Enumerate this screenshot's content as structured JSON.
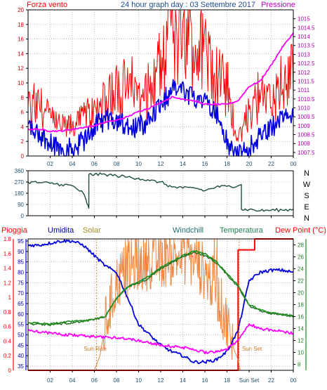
{
  "header": {
    "left": "Forza vento",
    "center": "24 hour graph day : 03 Settembre 2017",
    "right": "Pressione"
  },
  "bottom_header": {
    "rain": "Pioggia",
    "humidity": "Umidita",
    "solar": "Solar",
    "windchill": "Windchill",
    "temperature": "Temperatura",
    "dewpoint": "Dew Point (°C)"
  },
  "annotations": {
    "sunrise": "Sun Rise",
    "sunset": "Sun Set"
  },
  "colors": {
    "wind_gust": "#ff0000",
    "wind_avg": "#0000dd",
    "pressure": "#ff00ff",
    "direction": "#1e4d3a",
    "rain": "#ff0000",
    "humidity": "#0000dd",
    "solar": "#ee8844",
    "windchill": "#1e6e1e",
    "temperature": "#1e8c1e",
    "dewpoint": "#ff00ff",
    "grid": "#999999",
    "axis": "#000000",
    "label_dark": "#1e4d6e",
    "label_temp": "#1e7e4e",
    "label_solar": "#aa8822"
  },
  "chart_data": [
    {
      "type": "line",
      "title": "24 hour graph day : 03 Settembre 2017",
      "x_ticks": [
        "02",
        "04",
        "06",
        "08",
        "10",
        "12",
        "14",
        "16",
        "18",
        "20",
        "22",
        "00"
      ],
      "xlim": [
        0,
        24
      ],
      "left_axis": {
        "label": "Forza vento",
        "ticks": [
          "0",
          "2",
          "4",
          "6",
          "8",
          "10",
          "12",
          "14",
          "16",
          "18",
          "20"
        ],
        "ylim": [
          0,
          20
        ]
      },
      "right_axis": {
        "label": "Pressione",
        "ticks": [
          "1007.5",
          "1008",
          "1008.5",
          "1009",
          "1009.5",
          "1010",
          "1010.5",
          "1011",
          "1011.5",
          "1012",
          "1012.5",
          "1013",
          "1013.5",
          "1014",
          "1014.5",
          "1015"
        ],
        "ylim": [
          1007.3,
          1015.5
        ]
      },
      "series": [
        {
          "name": "Forza vento",
          "axis": "left",
          "x": [
            0,
            1,
            2,
            3,
            4,
            5,
            6,
            7,
            8,
            9,
            10,
            11,
            12,
            13,
            14,
            15,
            16,
            17,
            18,
            19,
            20,
            21,
            22,
            23,
            24
          ],
          "values": [
            6,
            7,
            5,
            4,
            4,
            5,
            6,
            7,
            9,
            9,
            8,
            9,
            12,
            15,
            16,
            15,
            14,
            11,
            9,
            2,
            6,
            8,
            7,
            9,
            10
          ]
        },
        {
          "name": "Vento medio",
          "axis": "left",
          "x": [
            0,
            1,
            2,
            3,
            4,
            5,
            6,
            7,
            8,
            9,
            10,
            11,
            12,
            13,
            14,
            15,
            16,
            17,
            18,
            19,
            20,
            21,
            22,
            23,
            24
          ],
          "values": [
            4,
            3,
            2,
            1,
            1,
            2,
            4,
            5,
            5,
            4,
            4,
            5,
            7,
            9,
            9,
            8,
            8,
            6,
            2,
            0,
            1,
            3,
            4,
            5,
            6
          ]
        },
        {
          "name": "Pressione",
          "axis": "right",
          "x": [
            0,
            1,
            2,
            3,
            4,
            5,
            6,
            7,
            8,
            9,
            10,
            11,
            12,
            13,
            14,
            15,
            16,
            17,
            18,
            19,
            20,
            21,
            22,
            23,
            24
          ],
          "values": [
            1008.8,
            1008.8,
            1008.7,
            1008.7,
            1008.8,
            1008.9,
            1009.0,
            1009.2,
            1009.3,
            1009.5,
            1009.8,
            1010.0,
            1010.3,
            1010.6,
            1010.5,
            1010.4,
            1010.2,
            1010.2,
            1010.2,
            1010.4,
            1011.2,
            1011.5,
            1012.4,
            1013.4,
            1014.2
          ]
        }
      ]
    },
    {
      "type": "line",
      "x_ticks": [
        "02",
        "04",
        "06",
        "08",
        "10",
        "12",
        "14",
        "16",
        "18",
        "20",
        "22",
        "00"
      ],
      "xlim": [
        0,
        24
      ],
      "left_axis": {
        "ticks": [
          "0",
          "90",
          "180",
          "270",
          "360"
        ],
        "ylim": [
          0,
          360
        ]
      },
      "right_labels": [
        "N",
        "W",
        "S",
        "E",
        "N"
      ],
      "series": [
        {
          "name": "Direzione vento",
          "x": [
            0,
            1,
            2,
            3,
            4,
            5,
            5.5,
            5.5,
            6,
            7,
            8,
            9,
            10,
            11,
            12,
            13,
            14,
            15,
            16,
            17,
            18,
            19,
            19.3,
            19.3,
            20,
            21,
            22,
            23,
            24
          ],
          "values": [
            270,
            265,
            260,
            250,
            240,
            180,
            60,
            330,
            330,
            330,
            320,
            310,
            300,
            280,
            270,
            230,
            220,
            225,
            200,
            230,
            235,
            240,
            250,
            50,
            50,
            40,
            45,
            45,
            50
          ]
        }
      ]
    },
    {
      "type": "line",
      "x_ticks": [
        "02",
        "04",
        "06",
        "08",
        "10",
        "12",
        "14",
        "16",
        "18",
        "Sun Set",
        "22",
        "00"
      ],
      "xlim": [
        0,
        24
      ],
      "left_axis_rain": {
        "label": "Pioggia",
        "ticks": [
          "0",
          "0.2",
          "0.4",
          "0.6",
          "0.8",
          "1",
          "1.2",
          "1.4",
          "1.6",
          "1.8"
        ],
        "ylim": [
          0,
          1.8
        ]
      },
      "left_axis_humidity": {
        "label": "Umidita",
        "ticks": [
          "35",
          "40",
          "45",
          "50",
          "55",
          "60",
          "65",
          "70",
          "75",
          "80",
          "85",
          "90",
          "95"
        ],
        "ylim": [
          33,
          96
        ]
      },
      "right_axis_temp": {
        "label": "Dew Point (°C)",
        "ticks": [
          "8",
          "10",
          "12",
          "14",
          "16",
          "18",
          "20",
          "22",
          "24",
          "26",
          "28"
        ],
        "ylim": [
          7,
          29
        ]
      },
      "annotations": [
        {
          "text": "Sun Rise",
          "x": 6.2
        },
        {
          "text": "Sun Set",
          "x": 19.1
        }
      ],
      "series": [
        {
          "name": "Pioggia",
          "axis": "rain",
          "x": [
            0,
            19,
            19,
            20.5,
            20.5,
            24
          ],
          "values": [
            0,
            0,
            1.65,
            1.65,
            1.8,
            1.8
          ]
        },
        {
          "name": "Umidita",
          "axis": "humidity",
          "x": [
            0,
            1,
            2,
            3,
            4,
            5,
            6,
            7,
            8,
            9,
            10,
            11,
            12,
            13,
            14,
            15,
            16,
            17,
            18,
            19,
            20,
            21,
            22,
            23,
            24
          ],
          "values": [
            93,
            93,
            94,
            95,
            95,
            93,
            88,
            83,
            80,
            68,
            55,
            50,
            45,
            42,
            40,
            37,
            37,
            38,
            42,
            52,
            76,
            80,
            81,
            81,
            80
          ]
        },
        {
          "name": "Solar",
          "axis": "humidity",
          "x": [
            0,
            6,
            6.5,
            7,
            7.5,
            8,
            9,
            10,
            11,
            12,
            13,
            14,
            15,
            16,
            17,
            18,
            18.5,
            19,
            19.2,
            24
          ],
          "values": [
            33,
            33,
            40,
            55,
            65,
            75,
            82,
            84,
            85,
            86,
            87,
            88,
            86,
            80,
            72,
            55,
            45,
            38,
            33,
            33
          ]
        },
        {
          "name": "Windchill",
          "axis": "temp",
          "x": [
            0,
            1,
            2,
            3,
            4,
            5,
            6,
            7,
            8,
            9,
            10,
            11,
            12,
            13,
            14,
            15,
            16,
            17,
            18,
            19,
            20,
            21,
            22,
            23,
            24
          ],
          "values": [
            14.8,
            14.7,
            14.6,
            14.8,
            15.0,
            15.2,
            15.5,
            16.0,
            19.0,
            21.0,
            21.5,
            22.5,
            24.0,
            25.0,
            26.0,
            26.8,
            26.2,
            25.0,
            23.0,
            21.0,
            17.8,
            17.0,
            16.5,
            16.3,
            16.0
          ]
        },
        {
          "name": "Temperatura",
          "axis": "temp",
          "x": [
            0,
            1,
            2,
            3,
            4,
            5,
            6,
            7,
            8,
            9,
            10,
            11,
            12,
            13,
            14,
            15,
            16,
            17,
            18,
            19,
            20,
            21,
            22,
            23,
            24
          ],
          "values": [
            15.0,
            14.9,
            14.8,
            15.0,
            15.2,
            15.3,
            15.6,
            16.0,
            19.0,
            21.0,
            21.8,
            22.8,
            24.2,
            25.2,
            26.2,
            27.0,
            26.5,
            25.2,
            23.2,
            21.2,
            18.0,
            17.2,
            16.6,
            16.4,
            16.2
          ]
        },
        {
          "name": "Dew Point",
          "axis": "temp",
          "x": [
            0,
            1,
            2,
            3,
            4,
            5,
            6,
            7,
            8,
            9,
            10,
            11,
            12,
            13,
            14,
            15,
            16,
            17,
            18,
            19,
            20,
            21,
            22,
            23,
            24
          ],
          "values": [
            13.8,
            13.5,
            13.2,
            13.0,
            12.9,
            12.8,
            12.6,
            12.5,
            12.5,
            12.3,
            12.0,
            11.6,
            11.2,
            11.0,
            10.8,
            10.5,
            10.0,
            10.2,
            10.5,
            12.0,
            14.8,
            14.0,
            13.7,
            13.5,
            13.2
          ]
        }
      ]
    }
  ]
}
